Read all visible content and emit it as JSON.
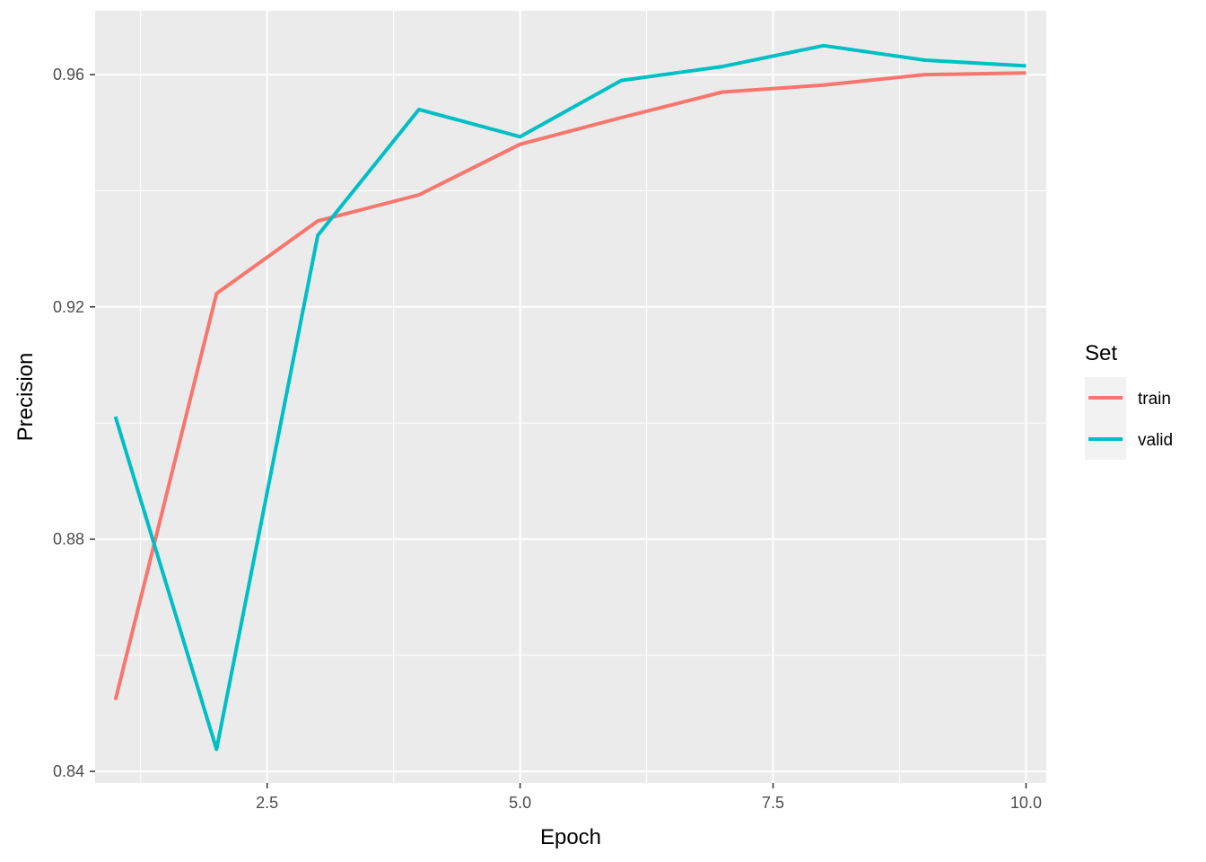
{
  "chart_data": {
    "type": "line",
    "xlabel": "Epoch",
    "ylabel": "Precision",
    "xlim": [
      0.8,
      10.2
    ],
    "ylim": [
      0.838,
      0.971
    ],
    "x_ticks": [
      2.5,
      5.0,
      7.5,
      10.0
    ],
    "x_tick_labels": [
      "2.5",
      "5.0",
      "7.5",
      "10.0"
    ],
    "y_ticks": [
      0.84,
      0.88,
      0.92,
      0.96
    ],
    "y_tick_labels": [
      "0.84",
      "0.88",
      "0.92",
      "0.96"
    ],
    "grid": true,
    "legend": {
      "title": "Set",
      "position": "right"
    },
    "x": [
      1,
      2,
      3,
      4,
      5,
      6,
      7,
      8,
      9,
      10
    ],
    "series": [
      {
        "name": "train",
        "color": "#F8766D",
        "values": [
          0.8523,
          0.9223,
          0.9348,
          0.9393,
          0.948,
          0.9526,
          0.957,
          0.9582,
          0.96,
          0.9603
        ]
      },
      {
        "name": "valid",
        "color": "#00BFC4",
        "values": [
          0.9011,
          0.8438,
          0.9323,
          0.954,
          0.9493,
          0.959,
          0.9614,
          0.965,
          0.9625,
          0.9615
        ]
      }
    ]
  }
}
